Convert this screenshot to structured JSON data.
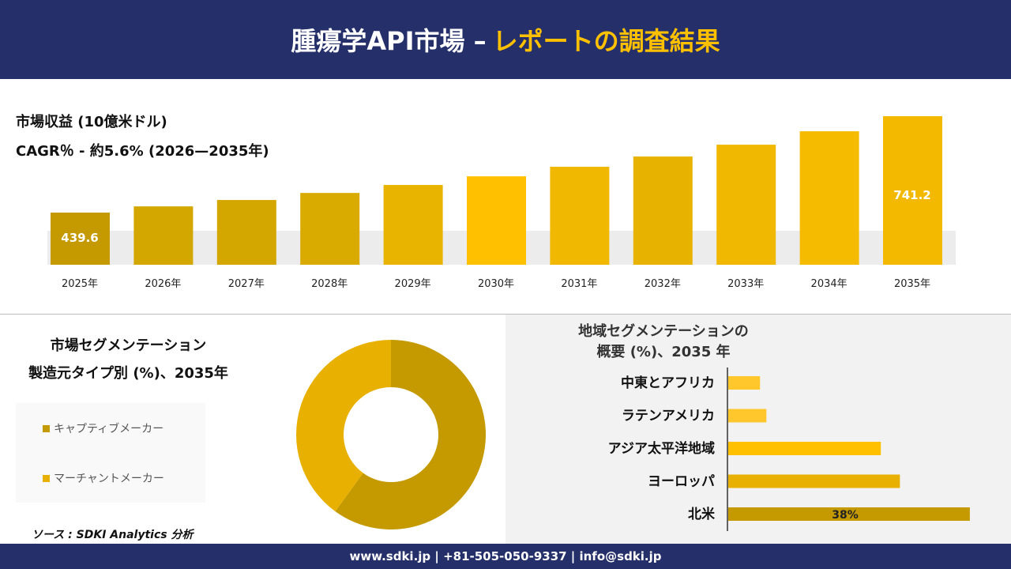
{
  "header": {
    "title_main": "腫瘍学API市場 –",
    "title_accent": "レポートの調査結果"
  },
  "revenue": {
    "label": "市場収益 (10億米ドル)",
    "cagr": "CAGR％ - 約5.6% (2026—2035年)"
  },
  "chart_data": [
    {
      "type": "bar",
      "categories": [
        "2025年",
        "2026年",
        "2027年",
        "2028年",
        "2029年",
        "2030年",
        "2031年",
        "2032年",
        "2033年",
        "2034年",
        "2035年"
      ],
      "values": [
        439.6,
        459,
        479,
        501,
        526,
        553,
        583,
        615,
        652,
        694,
        741.2
      ],
      "data_labels": {
        "0": "439.6",
        "10": "741.2"
      },
      "colors": [
        "#c49a00",
        "#d4a700",
        "#d4a700",
        "#d9aa00",
        "#e8b400",
        "#ffc000",
        "#f0b800",
        "#e8b200",
        "#f0b800",
        "#f5bb00",
        "#f2b900"
      ]
    },
    {
      "type": "pie",
      "donut": true,
      "title": "市場セグメンテーション 製造元タイプ別 (%)、2035年",
      "categories": [
        "キャプティブメーカー",
        "マーチャントメーカー"
      ],
      "values": [
        60,
        40
      ],
      "colors": [
        "#c49a00",
        "#e8b000"
      ]
    },
    {
      "type": "bar",
      "orientation": "horizontal",
      "title": "地域セグメンテーションの 概要 (%)、2035 年",
      "categories": [
        "中東とアフリカ",
        "ラテンアメリカ",
        "アジア太平洋地域",
        "ヨーロッパ",
        "北米"
      ],
      "values": [
        5,
        6,
        24,
        27,
        38
      ],
      "data_labels": {
        "4": "38%"
      },
      "colors": [
        "#ffc72c",
        "#ffc72c",
        "#ffc000",
        "#e8b000",
        "#c49a00"
      ]
    }
  ],
  "segment": {
    "title1": "市場セグメンテーション",
    "title2": "製造元タイプ別 (%)、2035年"
  },
  "region": {
    "title1": "地域セグメンテーションの",
    "title2": "概要 (%)、2035 年"
  },
  "source": "ソース : SDKI Analytics 分析",
  "footer": "www.sdki.jp | +81-505-050-9337 | info@sdki.jp"
}
